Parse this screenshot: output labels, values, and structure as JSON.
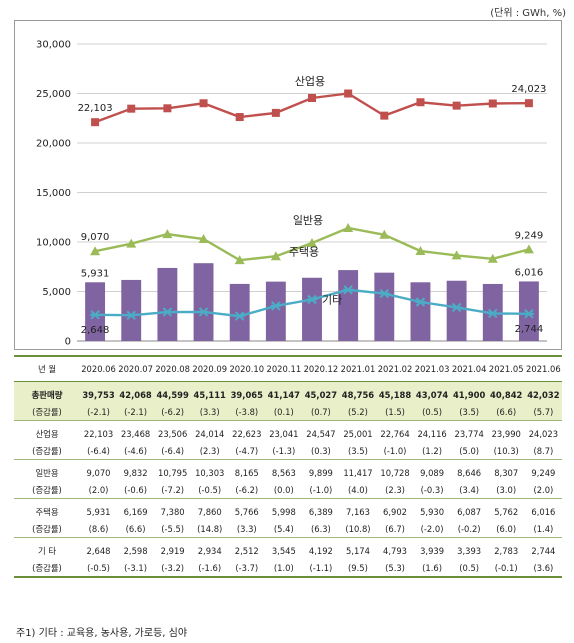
{
  "unit_note": "(단위 : GWh, %)",
  "footnote": "주1) 기타 : 교육용, 농사용, 가로등, 심야",
  "chart_data": {
    "type": "bar",
    "categories": [
      "2020.06",
      "2020.07",
      "2020.08",
      "2020.09",
      "2020.10",
      "2020.11",
      "2020.12",
      "2021.01",
      "2021.02",
      "2021.03",
      "2021.04",
      "2021.05",
      "2021.06"
    ],
    "ylim": [
      0,
      30000
    ],
    "yticks": [
      "0",
      "5,000",
      "10,000",
      "15,000",
      "20,000",
      "25,000",
      "30,000"
    ],
    "ytick_values": [
      0,
      5000,
      10000,
      15000,
      20000,
      25000,
      30000
    ],
    "grid": true,
    "series": [
      {
        "name": "주택용",
        "type": "bar",
        "color": "#8064a2",
        "values": [
          5931,
          6169,
          7380,
          7860,
          5766,
          5998,
          6389,
          7163,
          6902,
          5930,
          6087,
          5762,
          6016
        ],
        "start_label": "5,931",
        "end_label": "6,016"
      },
      {
        "name": "산업용",
        "type": "line",
        "color": "#c0504d",
        "marker": "square",
        "values": [
          22103,
          23468,
          23506,
          24014,
          22623,
          23041,
          24547,
          25001,
          22764,
          24116,
          23774,
          23990,
          24023
        ],
        "start_label": "22,103",
        "end_label": "24,023"
      },
      {
        "name": "일반용",
        "type": "line",
        "color": "#9bbb59",
        "marker": "triangle",
        "values": [
          9070,
          9832,
          10795,
          10303,
          8165,
          8563,
          9899,
          11417,
          10728,
          9089,
          8646,
          8307,
          9249
        ],
        "start_label": "9,070",
        "end_label": "9,249"
      },
      {
        "name": "기타",
        "type": "line",
        "color": "#4bacc6",
        "marker": "star",
        "values": [
          2648,
          2598,
          2919,
          2934,
          2512,
          3545,
          4192,
          5174,
          4793,
          3939,
          3393,
          2783,
          2744
        ],
        "start_label": "2,648",
        "end_label": "2,744"
      }
    ]
  },
  "table": {
    "header": {
      "label": "년  월",
      "months": [
        "2020.06",
        "2020.07",
        "2020.08",
        "2020.09",
        "2020.10",
        "2020.11",
        "2020.12",
        "2021.01",
        "2021.02",
        "2021.03",
        "2021.04",
        "2021.05",
        "2021.06"
      ]
    },
    "rows": [
      {
        "label": "총판매량",
        "highlight": true,
        "values": [
          "39,753",
          "42,068",
          "44,599",
          "45,111",
          "39,065",
          "41,147",
          "45,027",
          "48,756",
          "45,188",
          "43,074",
          "41,900",
          "40,842",
          "42,032"
        ],
        "growth_label": "(증감률)",
        "growth": [
          "(-2.1)",
          "(-2.1)",
          "(-6.2)",
          "(3.3)",
          "(-3.8)",
          "(0.1)",
          "(0.7)",
          "(5.2)",
          "(1.5)",
          "(0.5)",
          "(3.5)",
          "(6.6)",
          "(5.7)"
        ]
      },
      {
        "label": "산업용",
        "highlight": false,
        "values": [
          "22,103",
          "23,468",
          "23,506",
          "24,014",
          "22,623",
          "23,041",
          "24,547",
          "25,001",
          "22,764",
          "24,116",
          "23,774",
          "23,990",
          "24,023"
        ],
        "growth_label": "(증감률)",
        "growth": [
          "(-6.4)",
          "(-4.6)",
          "(-6.4)",
          "(2.3)",
          "(-4.7)",
          "(-1.3)",
          "(0.3)",
          "(3.5)",
          "(-1.0)",
          "(1.2)",
          "(5.0)",
          "(10.3)",
          "(8.7)"
        ]
      },
      {
        "label": "일반용",
        "highlight": false,
        "values": [
          "9,070",
          "9,832",
          "10,795",
          "10,303",
          "8,165",
          "8,563",
          "9,899",
          "11,417",
          "10,728",
          "9,089",
          "8,646",
          "8,307",
          "9,249"
        ],
        "growth_label": "(증감률)",
        "growth": [
          "(2.0)",
          "(-0.6)",
          "(-7.2)",
          "(-0.5)",
          "(-6.2)",
          "(0.0)",
          "(-1.0)",
          "(4.0)",
          "(2.3)",
          "(-0.3)",
          "(3.4)",
          "(3.0)",
          "(2.0)"
        ]
      },
      {
        "label": "주택용",
        "highlight": false,
        "values": [
          "5,931",
          "6,169",
          "7,380",
          "7,860",
          "5,766",
          "5,998",
          "6,389",
          "7,163",
          "6,902",
          "5,930",
          "6,087",
          "5,762",
          "6,016"
        ],
        "growth_label": "(증감률)",
        "growth": [
          "(8.6)",
          "(6.6)",
          "(-5.5)",
          "(14.8)",
          "(3.3)",
          "(5.4)",
          "(6.3)",
          "(10.8)",
          "(6.7)",
          "(-2.0)",
          "(-0.2)",
          "(6.0)",
          "(1.4)"
        ]
      },
      {
        "label": "기  타",
        "highlight": false,
        "values": [
          "2,648",
          "2,598",
          "2,919",
          "2,934",
          "2,512",
          "3,545",
          "4,192",
          "5,174",
          "4,793",
          "3,939",
          "3,393",
          "2,783",
          "2,744"
        ],
        "growth_label": "(증감률)",
        "growth": [
          "(-0.5)",
          "(-3.1)",
          "(-3.2)",
          "(-1.6)",
          "(-3.7)",
          "(1.0)",
          "(-1.1)",
          "(9.5)",
          "(5.3)",
          "(1.6)",
          "(0.5)",
          "(-0.1)",
          "(3.6)"
        ]
      }
    ]
  }
}
